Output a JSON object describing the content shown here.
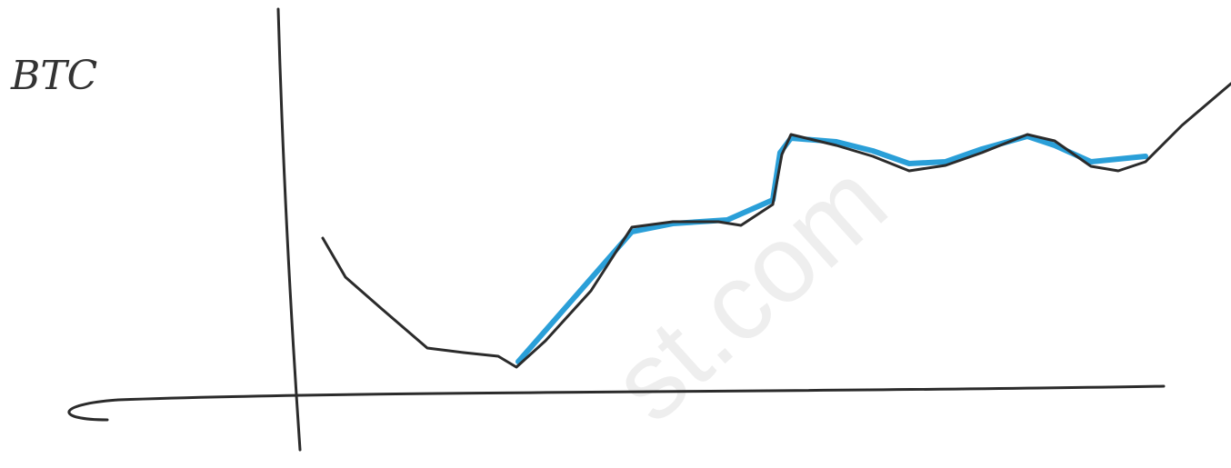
{
  "chart_data": {
    "type": "line",
    "title": "BTC",
    "watermark": "st.com",
    "xlim": [
      0,
      1029
    ],
    "ylim": [
      0,
      432
    ],
    "series": [
      {
        "color": "#2a9fd8",
        "x": [
          245,
          370,
          415,
          475,
          525,
          533,
          545,
          595,
          635,
          675,
          715,
          755,
          805,
          835,
          875,
          935
        ],
        "values": [
          34,
          177,
          186,
          190,
          212,
          264,
          280,
          276,
          266,
          252,
          254,
          268,
          282,
          272,
          254,
          260
        ]
      },
      {
        "color": "#2b2b2b",
        "x": [
          30,
          55,
          95,
          145,
          185,
          223,
          243,
          275,
          325,
          370,
          415,
          465,
          490,
          525,
          535,
          545,
          595,
          635,
          675,
          715,
          755,
          805,
          835,
          875,
          905,
          935,
          975,
          1029
        ],
        "values": [
          170,
          127,
          92,
          49,
          44,
          40,
          28,
          57,
          112,
          182,
          188,
          188,
          184,
          207,
          262,
          284,
          272,
          260,
          244,
          250,
          264,
          284,
          277,
          249,
          244,
          254,
          294,
          340
        ]
      }
    ]
  }
}
